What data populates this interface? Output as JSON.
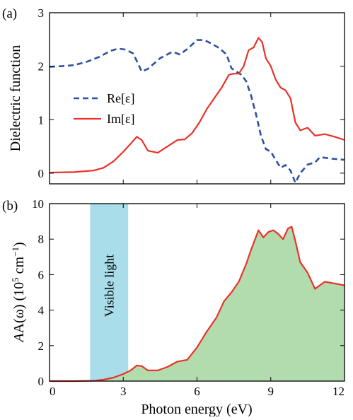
{
  "colors": {
    "re": "#2e4fa3",
    "im": "#e8322a",
    "fill": "#b3dcae",
    "visible": "#a8dde9"
  },
  "chart_data": [
    {
      "type": "line",
      "panel_label": "(a)",
      "ylabel": "Dielectric function",
      "xlim": [
        0,
        12
      ],
      "ylim": [
        -0.2,
        3
      ],
      "yticks": [
        "0",
        "1",
        "2",
        "3"
      ],
      "legend_position": "left",
      "series": [
        {
          "name": "Re[ε]",
          "style": "dashed",
          "x": [
            0,
            0.5,
            1.0,
            1.5,
            2.0,
            2.5,
            2.8,
            3.1,
            3.4,
            3.6,
            3.75,
            4.0,
            4.5,
            5.0,
            5.3,
            5.6,
            6.0,
            6.3,
            6.6,
            6.9,
            7.2,
            7.4,
            7.6,
            7.8,
            8.0,
            8.2,
            8.4,
            8.6,
            8.8,
            9.0,
            9.2,
            9.4,
            9.6,
            9.8,
            10.0,
            10.2,
            10.5,
            10.8,
            11.0,
            11.5,
            12.0
          ],
          "y": [
            1.99,
            2.0,
            2.02,
            2.08,
            2.17,
            2.29,
            2.33,
            2.31,
            2.24,
            2.05,
            1.9,
            1.95,
            2.15,
            2.27,
            2.22,
            2.32,
            2.49,
            2.49,
            2.42,
            2.34,
            2.22,
            1.96,
            1.9,
            1.84,
            1.72,
            1.45,
            1.1,
            0.7,
            0.45,
            0.4,
            0.25,
            0.1,
            0.15,
            0.05,
            -0.18,
            0.0,
            0.16,
            0.2,
            0.3,
            0.27,
            0.25
          ]
        },
        {
          "name": "Im[ε]",
          "style": "solid",
          "x": [
            0,
            1.0,
            1.8,
            2.2,
            2.6,
            3.0,
            3.3,
            3.55,
            3.75,
            4.0,
            4.4,
            4.8,
            5.2,
            5.5,
            5.8,
            6.1,
            6.4,
            6.7,
            7.0,
            7.3,
            7.5,
            7.7,
            7.9,
            8.1,
            8.3,
            8.5,
            8.65,
            8.8,
            9.0,
            9.2,
            9.4,
            9.6,
            9.8,
            10.0,
            10.2,
            10.5,
            10.8,
            11.2,
            11.6,
            12.0
          ],
          "y": [
            0.01,
            0.02,
            0.05,
            0.1,
            0.22,
            0.4,
            0.55,
            0.68,
            0.62,
            0.42,
            0.38,
            0.5,
            0.62,
            0.63,
            0.75,
            0.95,
            1.2,
            1.4,
            1.6,
            1.84,
            1.86,
            1.86,
            2.0,
            2.3,
            2.35,
            2.53,
            2.45,
            2.15,
            2.0,
            1.75,
            1.6,
            1.55,
            1.4,
            0.95,
            0.8,
            0.85,
            0.7,
            0.73,
            0.68,
            0.62
          ]
        }
      ]
    },
    {
      "type": "area",
      "panel_label": "(b)",
      "ylabel_main": "A(ω) (10",
      "ylabel_sup1": "5",
      "ylabel_mid": " cm",
      "ylabel_sup2": "−1",
      "ylabel_end": ")",
      "xlabel": "Photon energy (eV)",
      "xlim": [
        0,
        12
      ],
      "ylim": [
        0,
        10
      ],
      "xticks": [
        "0",
        "3",
        "6",
        "9",
        "12"
      ],
      "yticks": [
        "0",
        "2",
        "4",
        "6",
        "8",
        "10"
      ],
      "visible_band": {
        "x": [
          1.65,
          3.2
        ],
        "label": "Visible light"
      },
      "series": [
        {
          "name": "A(ω)",
          "x": [
            0,
            1.0,
            1.8,
            2.2,
            2.6,
            3.0,
            3.3,
            3.55,
            3.75,
            4.0,
            4.4,
            4.8,
            5.2,
            5.6,
            6.0,
            6.4,
            6.8,
            7.1,
            7.4,
            7.7,
            8.0,
            8.2,
            8.5,
            8.7,
            8.9,
            9.1,
            9.3,
            9.5,
            9.7,
            9.85,
            10.0,
            10.2,
            10.5,
            10.8,
            11.2,
            11.6,
            12.0
          ],
          "y": [
            0.0,
            0.0,
            0.02,
            0.08,
            0.2,
            0.4,
            0.6,
            0.88,
            0.85,
            0.6,
            0.6,
            0.8,
            1.1,
            1.2,
            1.9,
            2.8,
            3.6,
            4.5,
            5.0,
            5.6,
            6.6,
            7.4,
            8.5,
            8.1,
            8.4,
            8.5,
            8.3,
            8.0,
            8.6,
            8.7,
            7.9,
            6.7,
            6.1,
            5.2,
            5.6,
            5.5,
            5.4
          ]
        }
      ]
    }
  ]
}
